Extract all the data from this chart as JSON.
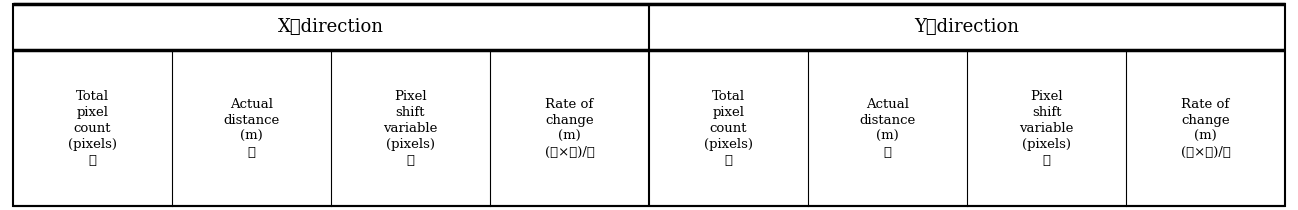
{
  "title_x": "X－direction",
  "title_y": "Y－direction",
  "col_headers_x": [
    "Total\npixel\ncount\n(pixels)\n①",
    "Actual\ndistance\n(m)\n②",
    "Pixel\nshift\nvariable\n(pixels)\n③",
    "Rate of\nchange\n(m)\n(②×③)/①"
  ],
  "col_headers_y": [
    "Total\npixel\ncount\n(pixels)\n①",
    "Actual\ndistance\n(m)\n②",
    "Pixel\nshift\nvariable\n(pixels)\n③",
    "Rate of\nchange\n(m)\n(②×③)/①"
  ],
  "background_color": "#ffffff",
  "text_color": "#000000",
  "header_bg": "#ffffff",
  "border_color": "#000000",
  "fig_width": 12.98,
  "fig_height": 2.1,
  "dpi": 100
}
